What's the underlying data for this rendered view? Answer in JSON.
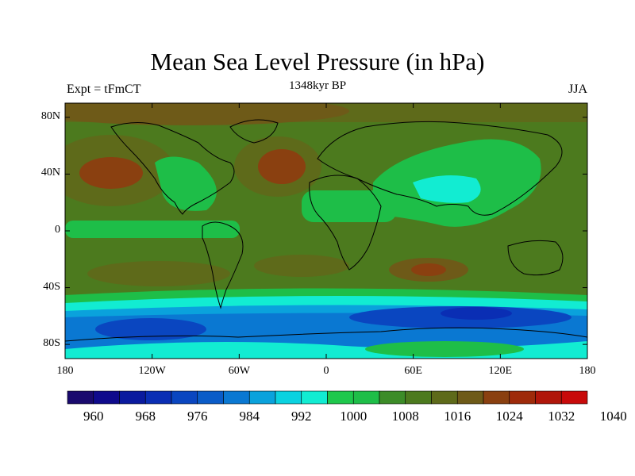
{
  "title": "Mean Sea Level Pressure (in hPa)",
  "subtitle": "1348kyr BP",
  "left_label": "Expt = tFmCT",
  "right_label": "JJA",
  "map": {
    "lat_ticks": [
      "80N",
      "40N",
      "0",
      "40S",
      "80S"
    ],
    "lon_ticks": [
      "180",
      "120W",
      "60W",
      "0",
      "60E",
      "120E",
      "180"
    ],
    "lat_values": [
      80,
      40,
      0,
      -40,
      -80
    ],
    "lon_values": [
      -180,
      -120,
      -60,
      0,
      60,
      120,
      180
    ]
  },
  "colorbar": {
    "labels": [
      "960",
      "968",
      "976",
      "984",
      "992",
      "1000",
      "1008",
      "1016",
      "1024",
      "1032",
      "1040"
    ],
    "colors": [
      "#1a0a6e",
      "#0f0a8c",
      "#0a1a9e",
      "#0a2eb4",
      "#0a46c0",
      "#0a5cc8",
      "#0a78d2",
      "#0aa2dc",
      "#0ad2e0",
      "#12ecd2",
      "#1ec84c",
      "#1ebe48",
      "#3c8c28",
      "#4c7a1e",
      "#5e6a1a",
      "#6e5a18",
      "#8a4010",
      "#9e2a0a",
      "#b0160a",
      "#c80a0a"
    ]
  },
  "palette": {
    "land_outline": "#000000",
    "background_field": "#4c7a1e"
  }
}
